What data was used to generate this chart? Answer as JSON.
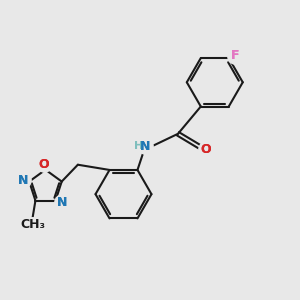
{
  "bg_color": "#e8e8e8",
  "bond_color": "#1a1a1a",
  "bond_width": 1.5,
  "atom_colors": {
    "N": "#1f77b4",
    "O": "#d62728",
    "F": "#e377c2",
    "H": "#7fbebd",
    "C": "#1a1a1a"
  },
  "font_size": 9,
  "fig_size": [
    3.0,
    3.0
  ],
  "dpi": 100,
  "xlim": [
    0,
    10
  ],
  "ylim": [
    0,
    10
  ]
}
